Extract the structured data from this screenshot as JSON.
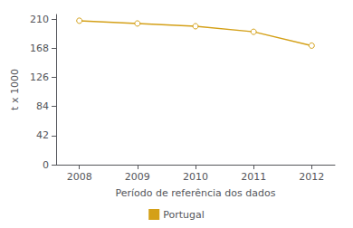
{
  "chart_data": {
    "type": "line",
    "xlabel": "Período de referência dos dados",
    "ylabel": "t x 1000",
    "x": [
      2008,
      2009,
      2010,
      2011,
      2012
    ],
    "series": [
      {
        "name": "Portugal",
        "color": "#D4A017",
        "marker": "circle",
        "values": [
          208,
          204,
          200,
          192,
          172
        ]
      }
    ],
    "xlim": [
      2007.6,
      2012.4
    ],
    "xticks": [
      2008,
      2009,
      2010,
      2011,
      2012
    ],
    "ylim": [
      0,
      217
    ],
    "yticks": [
      0,
      42,
      84,
      126,
      168,
      210
    ],
    "grid": false,
    "legend": "bottom"
  }
}
